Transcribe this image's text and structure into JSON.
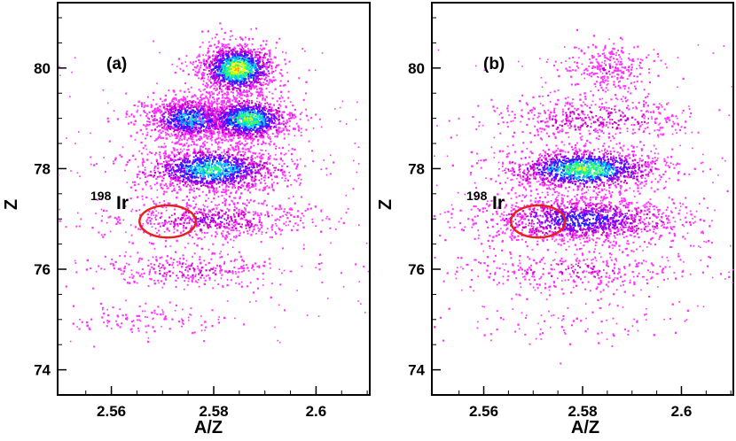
{
  "chart_data": [
    {
      "type": "heatmap",
      "panel_label": "(a)",
      "xlabel": "A/Z",
      "ylabel": "Z",
      "xlim": [
        2.5495,
        2.6105
      ],
      "ylim": [
        73.5,
        81.3
      ],
      "x_ticks": [
        2.56,
        2.58,
        2.6
      ],
      "x_tick_labels": [
        "2.56",
        "2.58",
        "2.6"
      ],
      "y_ticks": [
        74,
        76,
        78,
        80
      ],
      "y_tick_labels": [
        "74",
        "76",
        "78",
        "80"
      ],
      "grid": false,
      "colormap": [
        "#ff33ff",
        "#cc00cc",
        "#7a00ff",
        "#2020ff",
        "#00c8ff",
        "#33ff66",
        "#ffff00",
        "#ff9900"
      ],
      "annotation": {
        "sup": "198",
        "text": "Ir",
        "ellipse": {
          "color": "#e62020",
          "cx": 2.571,
          "cy": 76.95,
          "rx": 0.0055,
          "ry": 0.32
        }
      },
      "blobs": [
        {
          "z": 80,
          "x_center": 2.5845,
          "x_sigma": 0.0028,
          "y_sigma": 0.25,
          "peak": 1.0,
          "density": 1.0
        },
        {
          "z": 79,
          "x_center": 2.5755,
          "x_sigma": 0.0035,
          "y_sigma": 0.22,
          "peak": 0.7,
          "density": 0.8
        },
        {
          "z": 79,
          "x_center": 2.5865,
          "x_sigma": 0.0035,
          "y_sigma": 0.22,
          "peak": 0.85,
          "density": 0.9
        },
        {
          "z": 78,
          "x_center": 2.5795,
          "x_sigma": 0.0055,
          "y_sigma": 0.24,
          "peak": 0.75,
          "density": 1.0
        },
        {
          "z": 77,
          "x_center": 2.5795,
          "x_sigma": 0.0075,
          "y_sigma": 0.2,
          "peak": 0.3,
          "density": 0.45
        },
        {
          "z": 76,
          "x_center": 2.5745,
          "x_sigma": 0.0075,
          "y_sigma": 0.18,
          "peak": 0.2,
          "density": 0.22
        },
        {
          "z": 75,
          "x_center": 2.566,
          "x_sigma": 0.007,
          "y_sigma": 0.18,
          "peak": 0.12,
          "density": 0.08
        }
      ]
    },
    {
      "type": "heatmap",
      "panel_label": "(b)",
      "xlabel": "A/Z",
      "ylabel": "Z",
      "xlim": [
        2.5495,
        2.6105
      ],
      "ylim": [
        73.5,
        81.3
      ],
      "x_ticks": [
        2.56,
        2.58,
        2.6
      ],
      "x_tick_labels": [
        "2.56",
        "2.58",
        "2.6"
      ],
      "y_ticks": [
        74,
        76,
        78,
        80
      ],
      "y_tick_labels": [
        "74",
        "76",
        "78",
        "80"
      ],
      "grid": false,
      "colormap": [
        "#ff33ff",
        "#cc00cc",
        "#7a00ff",
        "#2020ff",
        "#00c8ff",
        "#33ff66",
        "#ffff00",
        "#ff9900"
      ],
      "annotation": {
        "sup": "198",
        "text": "Ir",
        "ellipse": {
          "color": "#e62020",
          "cx": 2.571,
          "cy": 76.95,
          "rx": 0.0055,
          "ry": 0.32
        }
      },
      "blobs": [
        {
          "z": 80,
          "x_center": 2.585,
          "x_sigma": 0.0035,
          "y_sigma": 0.25,
          "peak": 0.15,
          "density": 0.2
        },
        {
          "z": 79,
          "x_center": 2.5825,
          "x_sigma": 0.008,
          "y_sigma": 0.24,
          "peak": 0.25,
          "density": 0.35
        },
        {
          "z": 78,
          "x_center": 2.58,
          "x_sigma": 0.006,
          "y_sigma": 0.22,
          "peak": 0.85,
          "density": 1.0
        },
        {
          "z": 77,
          "x_center": 2.5795,
          "x_sigma": 0.008,
          "y_sigma": 0.24,
          "peak": 0.5,
          "density": 1.0
        },
        {
          "z": 76,
          "x_center": 2.5785,
          "x_sigma": 0.009,
          "y_sigma": 0.22,
          "peak": 0.2,
          "density": 0.25
        },
        {
          "z": 75,
          "x_center": 2.578,
          "x_sigma": 0.009,
          "y_sigma": 0.3,
          "peak": 0.08,
          "density": 0.06
        }
      ]
    }
  ]
}
